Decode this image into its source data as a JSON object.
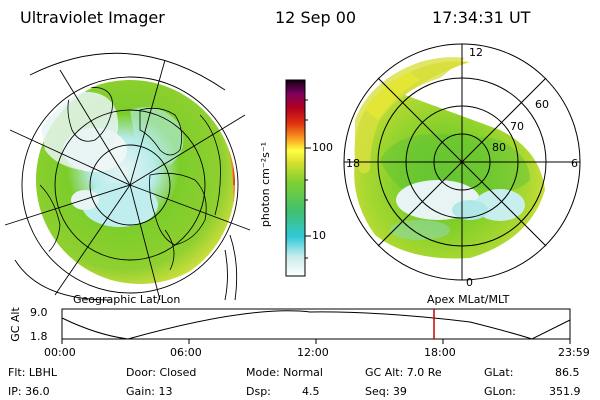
{
  "header": {
    "instrument": "Ultraviolet Imager",
    "date": "12 Sep 00",
    "time": "17:34:31 UT"
  },
  "colorbar": {
    "unit": "photon cm⁻²s⁻¹",
    "ticks": [
      "100",
      "10"
    ]
  },
  "left_panel": {
    "label": "Geographic Lat/Lon"
  },
  "right_panel": {
    "label": "Apex MLat/MLT",
    "mlt_labels": {
      "top": "12",
      "left": "18",
      "right": "6",
      "bottom": "0"
    },
    "lat_labels": [
      "60",
      "70",
      "80"
    ]
  },
  "timeline": {
    "ylabel": "GC Alt",
    "y_ticks": [
      "9.0",
      "1.8"
    ],
    "x_ticks": [
      "00:00",
      "06:00",
      "12:00",
      "18:00",
      "23:59"
    ],
    "current_time_fraction": 0.7323
  },
  "footer": {
    "flt": "Flt: LBHL",
    "ip": "IP: 36.0",
    "door": "Door: Closed",
    "gain": "Gain: 13",
    "mode": "Mode: Normal",
    "dsp_label": "Dsp:",
    "dsp_value": "4.5",
    "gcalt": "GC Alt: 7.0 Re",
    "seq": "Seq: 39",
    "glat_label": "GLat:",
    "glat_value": "86.5",
    "glon_label": "GLon:",
    "glon_value": "351.9"
  },
  "colors": {
    "aurora_green": "#7ccd2a",
    "aurora_yellow": "#e8e830",
    "aurora_cyan": "#40d0d8",
    "aurora_white": "#e8f0f0",
    "aurora_orange": "#f08c20",
    "marker_red": "#cc0000"
  }
}
